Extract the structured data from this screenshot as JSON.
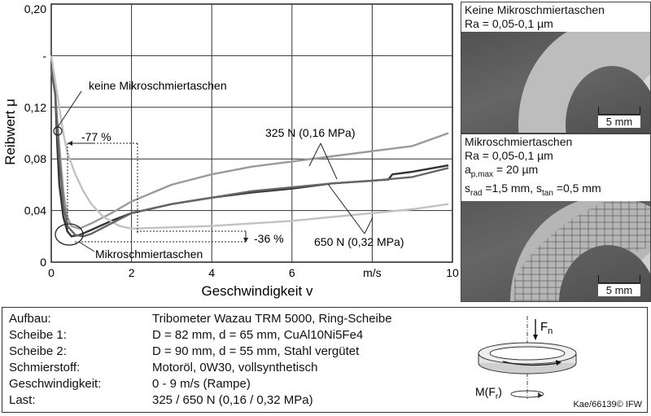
{
  "chart_data": {
    "type": "line",
    "xlabel": "Geschwindigkeit v",
    "ylabel": "Reibwert μ",
    "x_unit": "m/s",
    "xlim": [
      0,
      10
    ],
    "ylim": [
      0,
      0.2
    ],
    "x_ticks": [
      "0",
      "2",
      "4",
      "6",
      "m/s",
      "10"
    ],
    "y_ticks": [
      "0",
      "0,04",
      "0,08",
      "0,12",
      "-",
      "0,20"
    ],
    "grid": true,
    "series": [
      {
        "key": "gray_325",
        "color": "#9a9a9a",
        "x": [
          0,
          0.1,
          0.2,
          0.3,
          0.4,
          0.5,
          0.7,
          1,
          1.5,
          2,
          3,
          4,
          5,
          6,
          7,
          8,
          9,
          9.9
        ],
        "y": [
          0.15,
          0.13,
          0.09,
          0.055,
          0.035,
          0.028,
          0.026,
          0.03,
          0.038,
          0.047,
          0.06,
          0.068,
          0.074,
          0.078,
          0.082,
          0.086,
          0.09,
          0.1
        ]
      },
      {
        "key": "dark_325",
        "color": "#333333",
        "x": [
          0,
          0.1,
          0.15,
          0.2,
          0.3,
          0.4,
          0.5,
          0.7,
          1,
          1.5,
          2,
          3,
          4,
          5,
          6,
          7,
          8.4,
          8.5,
          9,
          9.9
        ],
        "y": [
          0.15,
          0.13,
          0.09,
          0.06,
          0.035,
          0.024,
          0.02,
          0.021,
          0.025,
          0.032,
          0.038,
          0.045,
          0.05,
          0.054,
          0.057,
          0.061,
          0.064,
          0.068,
          0.07,
          0.075
        ]
      },
      {
        "key": "light_650",
        "color": "#c2c2c2",
        "x": [
          0,
          0.1,
          0.2,
          0.3,
          0.4,
          0.6,
          0.8,
          1,
          1.3,
          1.7,
          2,
          3,
          4,
          5,
          6,
          7,
          8,
          9,
          9.9
        ],
        "y": [
          0.16,
          0.14,
          0.12,
          0.1,
          0.085,
          0.068,
          0.055,
          0.045,
          0.035,
          0.028,
          0.026,
          0.027,
          0.028,
          0.03,
          0.032,
          0.035,
          0.038,
          0.041,
          0.045
        ]
      },
      {
        "key": "dark_650",
        "color": "#666666",
        "x": [
          0,
          0.1,
          0.2,
          0.3,
          0.4,
          0.6,
          0.8,
          1,
          1.5,
          2,
          3,
          4,
          5,
          6,
          7,
          8,
          9,
          9.9
        ],
        "y": [
          0.15,
          0.13,
          0.08,
          0.045,
          0.028,
          0.021,
          0.02,
          0.022,
          0.03,
          0.038,
          0.045,
          0.05,
          0.055,
          0.058,
          0.061,
          0.063,
          0.066,
          0.073
        ]
      }
    ],
    "annotations": {
      "keine": "keine Mikroschmiertaschen",
      "mikro": "Mikroschmiertaschen",
      "label_325": "325 N (0,16 MPa)",
      "label_650": "650 N (0,32 MPa)",
      "pct_77": "-77 %",
      "pct_36": "-36 %"
    }
  },
  "photos": {
    "top": {
      "line1": "Keine Mikroschmiertaschen",
      "line2": "Ra = 0,05-0,1 µm",
      "scale": "5 mm"
    },
    "bottom": {
      "line1": "Mikroschmiertaschen",
      "line2": "Ra = 0,05-0,1 µm",
      "line3_a": "a",
      "line3_sub": "p,max",
      "line3_b": " = 20 µm",
      "line4_a": "s",
      "line4_sub1": "rad",
      "line4_b": " =1,5 mm, s",
      "line4_sub2": "tan",
      "line4_c": " =0,5 mm",
      "scale": "5 mm"
    }
  },
  "setup": {
    "rows": [
      {
        "key": "Aufbau:",
        "value": "Tribometer Wazau TRM 5000, Ring-Scheibe"
      },
      {
        "key": "Scheibe 1:",
        "value": "D = 82 mm, d = 65 mm, CuAl10Ni5Fe4"
      },
      {
        "key": "Scheibe 2:",
        "value": "D = 90 mm, d = 55 mm, Stahl vergütet"
      },
      {
        "key": "Schmierstoff:",
        "value": "Motoröl, 0W30, vollsynthetisch"
      },
      {
        "key": "Geschwindigkeit:",
        "value": "0 - 9 m/s (Rampe)"
      },
      {
        "key": "Last:",
        "value": "325 / 650 N (0,16 / 0,32 MPa)"
      }
    ],
    "force_label": "F",
    "force_sub": "n",
    "moment_label": "M(F",
    "moment_sub": "r",
    "moment_end": ")",
    "credit": "Kae/66139© IFW"
  }
}
